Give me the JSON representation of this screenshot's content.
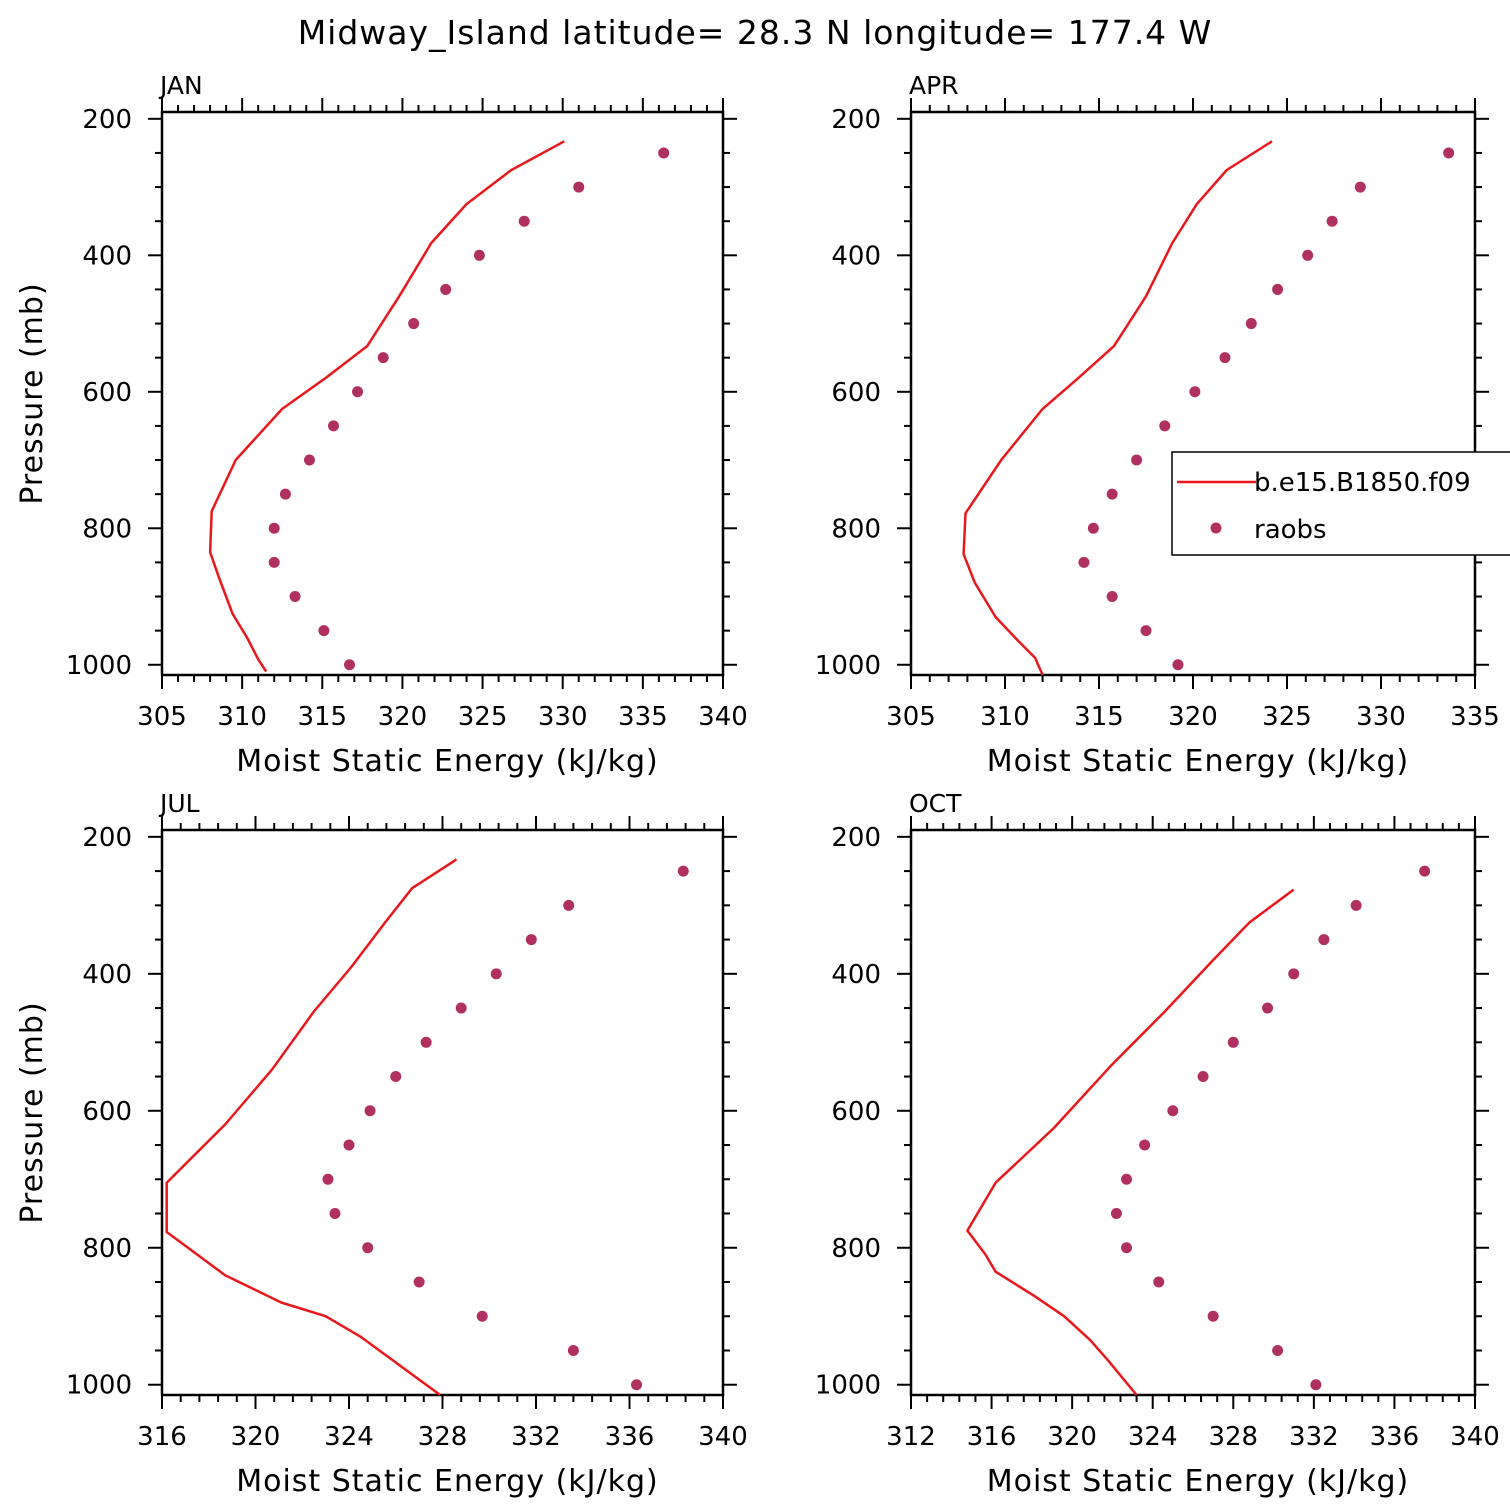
{
  "title": "Midway_Island  latitude= 28.3 N longitude= 177.4 W",
  "legend": {
    "model_label": "b.e15.B1850.f09",
    "obs_label": "raobs"
  },
  "colors": {
    "model_line": "#e8181c",
    "obs_marker": "#b03060",
    "axes": "#000000"
  },
  "chart_data": [
    {
      "type": "line",
      "panel": "JAN",
      "xlabel": "Moist Static Energy (kJ/kg)",
      "ylabel": "Pressure (mb)",
      "xlim": [
        305,
        340
      ],
      "xticks": [
        305,
        310,
        315,
        320,
        325,
        330,
        335,
        340
      ],
      "ylim": [
        1000,
        200
      ],
      "yticks": [
        200,
        400,
        600,
        800,
        1000
      ],
      "y_reversed": true,
      "series": [
        {
          "name": "b.e15.B1850.f09",
          "style": "line",
          "x": [
            311.5,
            311.0,
            310.3,
            309.4,
            308.6,
            308.0,
            308.1,
            309.6,
            312.5,
            315.2,
            317.8,
            319.8,
            321.8,
            324.0,
            326.8,
            330.1
          ],
          "y": [
            1010,
            992,
            960,
            925,
            875,
            835,
            775,
            700,
            625,
            580,
            533,
            460,
            382,
            325,
            275,
            233
          ]
        },
        {
          "name": "raobs",
          "style": "marker",
          "x": [
            316.7,
            315.1,
            313.3,
            312.0,
            312.0,
            312.7,
            314.2,
            315.7,
            317.2,
            318.8,
            320.7,
            322.7,
            324.8,
            327.6,
            331.0,
            336.3
          ],
          "y": [
            1000,
            950,
            900,
            850,
            800,
            750,
            700,
            650,
            600,
            550,
            500,
            450,
            400,
            350,
            300,
            250
          ]
        }
      ]
    },
    {
      "type": "line",
      "panel": "APR",
      "xlabel": "Moist Static Energy (kJ/kg)",
      "ylabel": "",
      "xlim": [
        305,
        335
      ],
      "xticks": [
        305,
        310,
        315,
        320,
        325,
        330,
        335
      ],
      "ylim": [
        1000,
        200
      ],
      "yticks": [
        200,
        400,
        600,
        800,
        1000
      ],
      "y_reversed": true,
      "series": [
        {
          "name": "b.e15.B1850.f09",
          "style": "line",
          "x": [
            312.0,
            311.6,
            310.7,
            309.5,
            308.4,
            307.8,
            307.9,
            309.8,
            312.0,
            313.9,
            315.8,
            317.5,
            318.9,
            320.2,
            321.8,
            324.2
          ],
          "y": [
            1015,
            990,
            965,
            930,
            880,
            838,
            778,
            700,
            625,
            580,
            533,
            460,
            382,
            325,
            275,
            233
          ]
        },
        {
          "name": "raobs",
          "style": "marker",
          "x": [
            319.2,
            317.5,
            315.7,
            314.2,
            314.7,
            315.7,
            317.0,
            318.5,
            320.1,
            321.7,
            323.1,
            324.5,
            326.1,
            327.4,
            328.9,
            333.6
          ],
          "y": [
            1000,
            950,
            900,
            850,
            800,
            750,
            700,
            650,
            600,
            550,
            500,
            450,
            400,
            350,
            300,
            250
          ]
        }
      ]
    },
    {
      "type": "line",
      "panel": "JUL",
      "xlabel": "Moist Static Energy (kJ/kg)",
      "ylabel": "Pressure (mb)",
      "xlim": [
        316,
        340
      ],
      "xticks": [
        316,
        320,
        324,
        328,
        332,
        336,
        340
      ],
      "ylim": [
        1000,
        200
      ],
      "yticks": [
        200,
        400,
        600,
        800,
        1000
      ],
      "y_reversed": true,
      "series": [
        {
          "name": "b.e15.B1850.f09",
          "style": "line",
          "x": [
            327.9,
            326.7,
            325.7,
            324.5,
            323.0,
            321.1,
            318.7,
            316.2,
            316.2,
            318.7,
            320.7,
            322.5,
            324.1,
            325.5,
            326.7,
            328.6
          ],
          "y": [
            1015,
            985,
            960,
            930,
            900,
            880,
            840,
            777,
            705,
            620,
            540,
            455,
            390,
            327,
            275,
            233
          ]
        },
        {
          "name": "raobs",
          "style": "marker",
          "x": [
            336.3,
            333.6,
            329.7,
            327.0,
            324.8,
            323.4,
            323.1,
            324.0,
            324.9,
            326.0,
            327.3,
            328.8,
            330.3,
            331.8,
            333.4,
            338.3
          ],
          "y": [
            1000,
            950,
            900,
            850,
            800,
            750,
            700,
            650,
            600,
            550,
            500,
            450,
            400,
            350,
            300,
            250
          ]
        }
      ]
    },
    {
      "type": "line",
      "panel": "OCT",
      "xlabel": "Moist Static Energy (kJ/kg)",
      "ylabel": "",
      "xlim": [
        312,
        340
      ],
      "xticks": [
        312,
        316,
        320,
        324,
        328,
        332,
        336,
        340
      ],
      "ylim": [
        1000,
        200
      ],
      "yticks": [
        200,
        400,
        600,
        800,
        1000
      ],
      "y_reversed": true,
      "series": [
        {
          "name": "b.e15.B1850.f09",
          "style": "line",
          "x": [
            323.2,
            322.5,
            321.8,
            320.9,
            319.6,
            318.1,
            316.2,
            315.7,
            314.8,
            316.2,
            319.1,
            321.9,
            324.6,
            327.0,
            328.8,
            331.0
          ],
          "y": [
            1015,
            990,
            965,
            935,
            900,
            870,
            835,
            810,
            775,
            705,
            625,
            535,
            455,
            380,
            325,
            277
          ]
        },
        {
          "name": "raobs",
          "style": "marker",
          "x": [
            332.1,
            330.2,
            327.0,
            324.3,
            322.7,
            322.2,
            322.7,
            323.6,
            325.0,
            326.5,
            328.0,
            329.7,
            331.0,
            332.5,
            334.1,
            337.5
          ],
          "y": [
            1000,
            950,
            900,
            850,
            800,
            750,
            700,
            650,
            600,
            550,
            500,
            450,
            400,
            350,
            300,
            250
          ]
        }
      ]
    }
  ]
}
